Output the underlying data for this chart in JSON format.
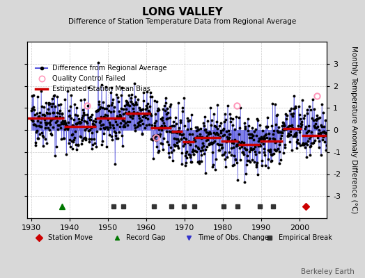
{
  "title": "LONG VALLEY",
  "subtitle": "Difference of Station Temperature Data from Regional Average",
  "ylabel": "Monthly Temperature Anomaly Difference (°C)",
  "xlabel_years": [
    1930,
    1940,
    1950,
    1960,
    1970,
    1980,
    1990,
    2000
  ],
  "xlim": [
    1929,
    2007
  ],
  "ylim": [
    -4,
    4
  ],
  "yticks": [
    -3,
    -2,
    -1,
    0,
    1,
    2,
    3
  ],
  "background_color": "#d8d8d8",
  "plot_bg_color": "#ffffff",
  "watermark": "Berkeley Earth",
  "seed": 42,
  "bias_segments": [
    {
      "x_start": 1929.0,
      "x_end": 1938.5,
      "bias": 0.55
    },
    {
      "x_start": 1938.5,
      "x_end": 1947.0,
      "bias": 0.15
    },
    {
      "x_start": 1947.0,
      "x_end": 1954.5,
      "bias": 0.55
    },
    {
      "x_start": 1954.5,
      "x_end": 1961.0,
      "bias": 0.75
    },
    {
      "x_start": 1961.0,
      "x_end": 1966.5,
      "bias": 0.1
    },
    {
      "x_start": 1966.5,
      "x_end": 1969.5,
      "bias": -0.05
    },
    {
      "x_start": 1969.5,
      "x_end": 1972.5,
      "bias": -0.55
    },
    {
      "x_start": 1972.5,
      "x_end": 1979.5,
      "bias": -0.35
    },
    {
      "x_start": 1979.5,
      "x_end": 1984.0,
      "bias": -0.5
    },
    {
      "x_start": 1984.0,
      "x_end": 1989.5,
      "bias": -0.65
    },
    {
      "x_start": 1989.5,
      "x_end": 1995.5,
      "bias": -0.5
    },
    {
      "x_start": 1995.5,
      "x_end": 2000.5,
      "bias": 0.05
    },
    {
      "x_start": 2000.5,
      "x_end": 2007.0,
      "bias": -0.25
    }
  ],
  "event_markers": {
    "station_moves": [
      2001.5
    ],
    "record_gaps": [
      1938.0
    ],
    "time_obs_changes": [],
    "empirical_breaks": [
      1951.5,
      1954.0,
      1962.0,
      1966.5,
      1969.8,
      1972.5,
      1980.2,
      1983.8,
      1989.5,
      1993.0
    ]
  },
  "qc_fail_points": [
    [
      1944.5,
      1.1
    ],
    [
      1962.5,
      -0.35
    ],
    [
      1983.5,
      1.1
    ],
    [
      2004.5,
      1.55
    ]
  ],
  "line_color": "#5555dd",
  "dot_color": "#000000",
  "bias_color": "#cc0000",
  "qc_color": "#ff99bb",
  "station_move_color": "#cc0000",
  "record_gap_color": "#007700",
  "time_obs_color": "#3333cc",
  "empirical_break_color": "#333333",
  "grid_color": "#cccccc"
}
